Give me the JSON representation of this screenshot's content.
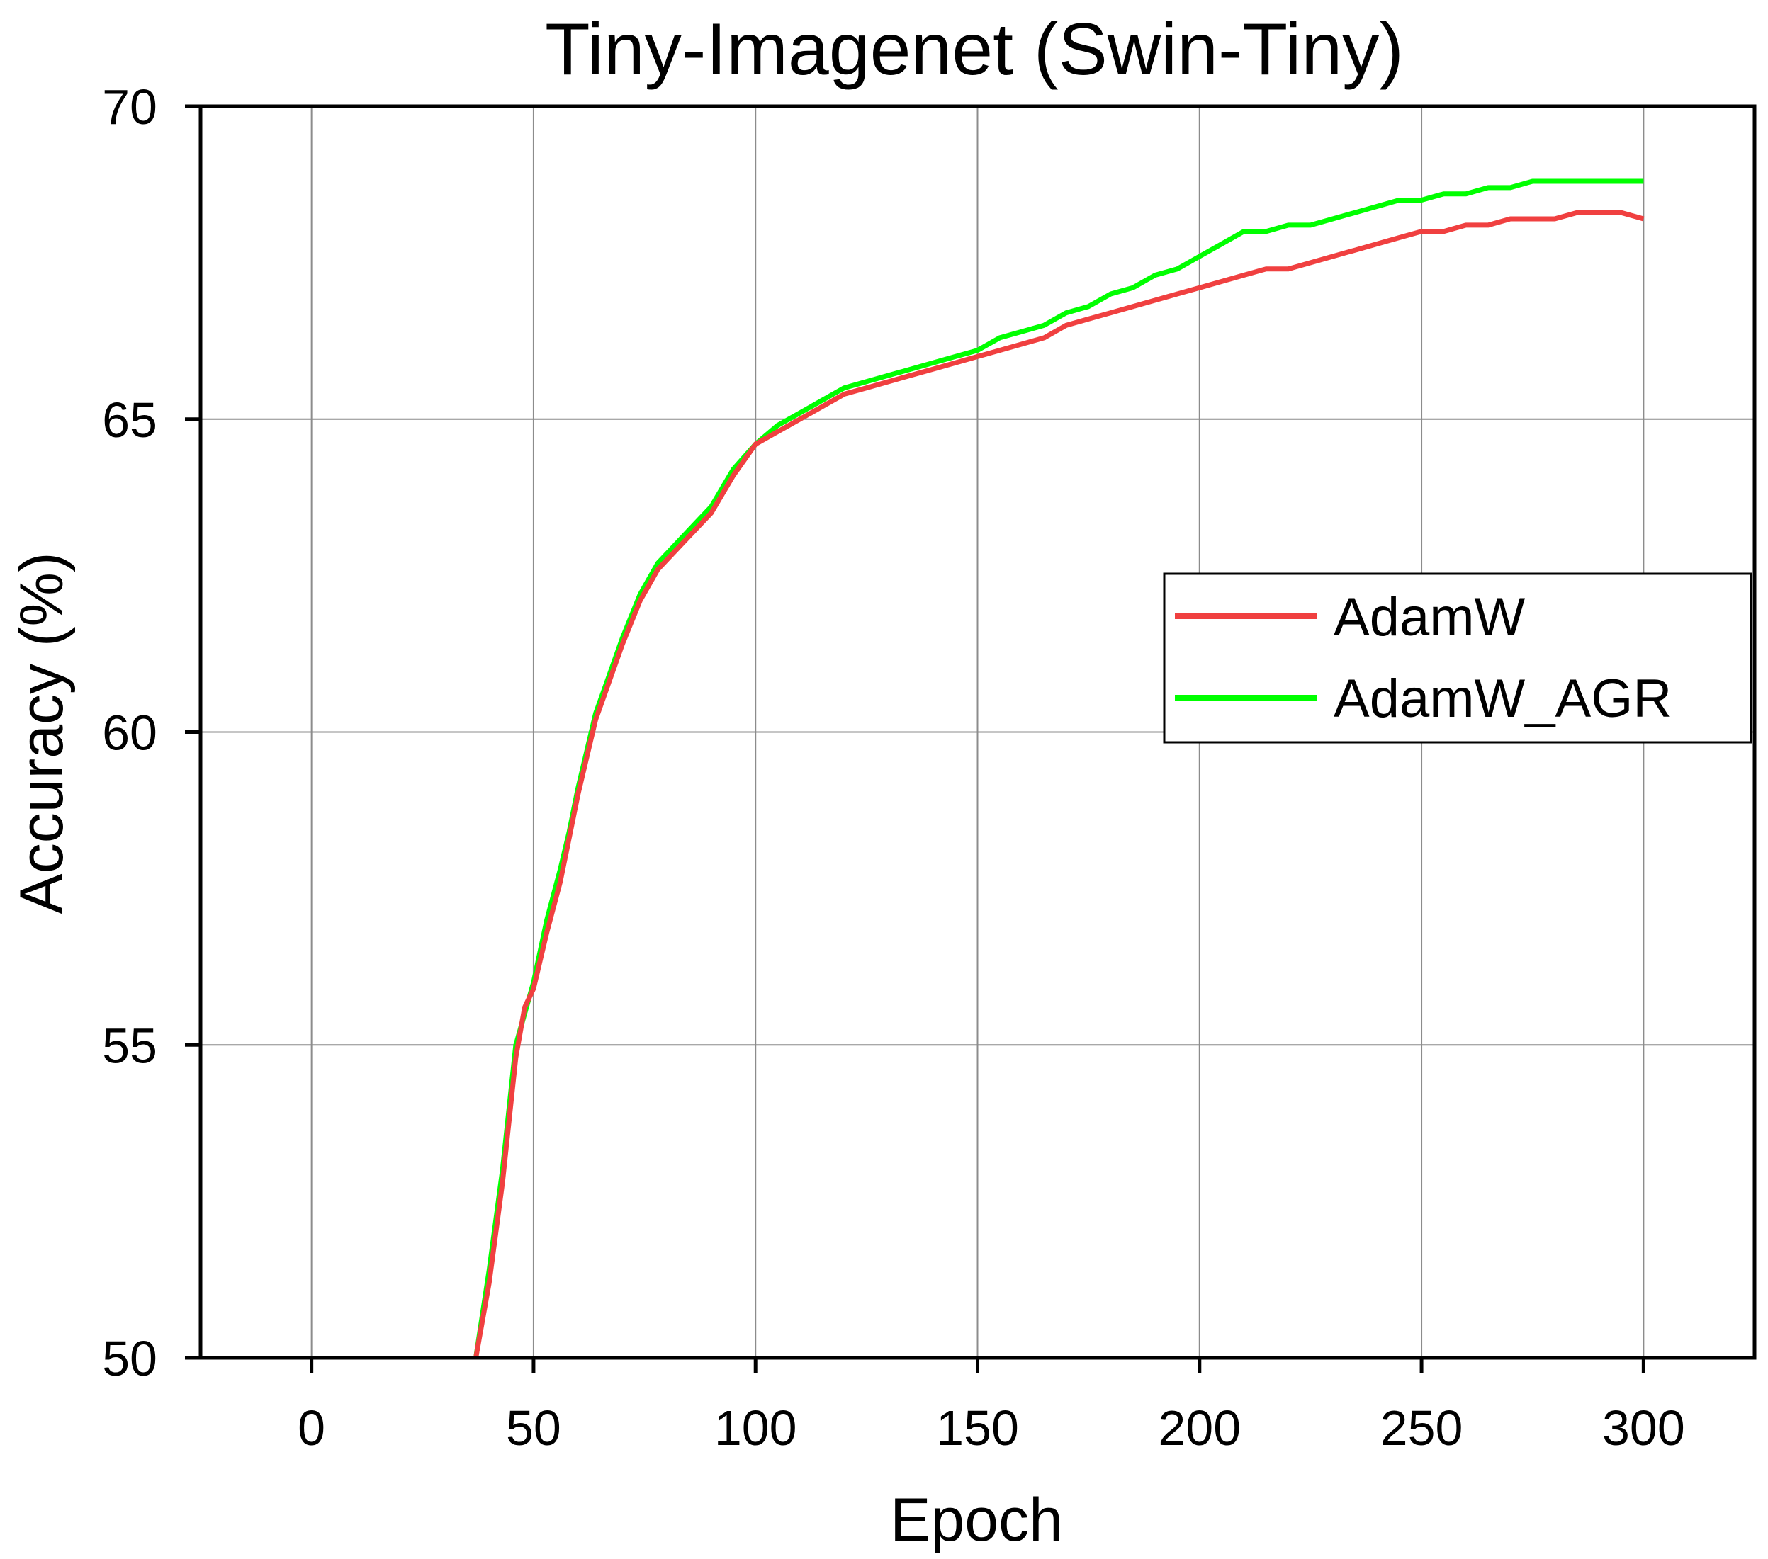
{
  "chart_data": {
    "type": "line",
    "title": "Tiny-Imagenet (Swin-Tiny)",
    "xlabel": "Epoch",
    "ylabel": "Accuracy (%)",
    "xlim": [
      -25,
      325
    ],
    "ylim": [
      50,
      70
    ],
    "xticks": [
      0,
      50,
      100,
      150,
      200,
      250,
      300
    ],
    "yticks": [
      50,
      55,
      60,
      65,
      70
    ],
    "grid": true,
    "legend_position": "right",
    "x": [
      37,
      40,
      43,
      46,
      48,
      50,
      53,
      56,
      58,
      60,
      62,
      64,
      66,
      70,
      74,
      78,
      82,
      86,
      90,
      95,
      100,
      105,
      110,
      115,
      120,
      125,
      130,
      135,
      140,
      145,
      150,
      155,
      160,
      165,
      170,
      175,
      180,
      185,
      190,
      195,
      200,
      205,
      210,
      215,
      220,
      225,
      230,
      235,
      240,
      245,
      250,
      255,
      260,
      265,
      270,
      275,
      280,
      285,
      290,
      295,
      300
    ],
    "series": [
      {
        "name": "AdamW",
        "color": "#f04040",
        "values": [
          50.0,
          51.2,
          52.8,
          54.8,
          55.6,
          55.9,
          56.8,
          57.6,
          58.3,
          59.0,
          59.6,
          60.2,
          60.6,
          61.4,
          62.1,
          62.6,
          62.9,
          63.2,
          63.5,
          64.1,
          64.6,
          64.8,
          65.0,
          65.2,
          65.4,
          65.5,
          65.6,
          65.7,
          65.8,
          65.9,
          66.0,
          66.1,
          66.2,
          66.3,
          66.5,
          66.6,
          66.7,
          66.8,
          66.9,
          67.0,
          67.1,
          67.2,
          67.3,
          67.4,
          67.4,
          67.5,
          67.6,
          67.7,
          67.8,
          67.9,
          68.0,
          68.0,
          68.1,
          68.1,
          68.2,
          68.2,
          68.2,
          68.3,
          68.3,
          68.3,
          68.2
        ]
      },
      {
        "name": "AdamW_AGR",
        "color": "#00ff00",
        "values": [
          50.0,
          51.4,
          53.0,
          55.0,
          55.5,
          56.0,
          57.0,
          57.8,
          58.4,
          59.1,
          59.7,
          60.3,
          60.7,
          61.5,
          62.2,
          62.7,
          63.0,
          63.3,
          63.6,
          64.2,
          64.6,
          64.9,
          65.1,
          65.3,
          65.5,
          65.6,
          65.7,
          65.8,
          65.9,
          66.0,
          66.1,
          66.3,
          66.4,
          66.5,
          66.7,
          66.8,
          67.0,
          67.1,
          67.3,
          67.4,
          67.6,
          67.8,
          68.0,
          68.0,
          68.1,
          68.1,
          68.2,
          68.3,
          68.4,
          68.5,
          68.5,
          68.6,
          68.6,
          68.7,
          68.7,
          68.8,
          68.8,
          68.8,
          68.8,
          68.8,
          68.8
        ]
      }
    ]
  }
}
